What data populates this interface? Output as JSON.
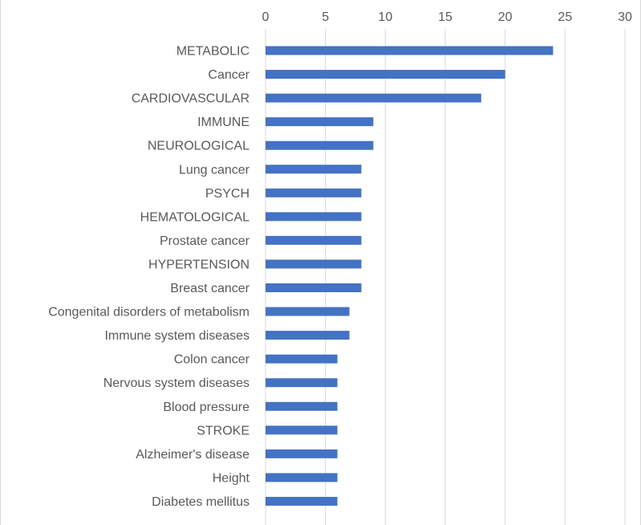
{
  "chart_data": {
    "type": "bar",
    "orientation": "horizontal",
    "categories": [
      "METABOLIC",
      "Cancer",
      "CARDIOVASCULAR",
      "IMMUNE",
      "NEUROLOGICAL",
      "Lung cancer",
      "PSYCH",
      "HEMATOLOGICAL",
      "Prostate cancer",
      "HYPERTENSION",
      "Breast cancer",
      "Congenital disorders of metabolism",
      "Immune system diseases",
      "Colon cancer",
      "Nervous system diseases",
      "Blood pressure",
      "STROKE",
      "Alzheimer's disease",
      "Height",
      "Diabetes mellitus"
    ],
    "values": [
      24,
      20,
      18,
      9,
      9,
      8,
      8,
      8,
      8,
      8,
      8,
      7,
      7,
      6,
      6,
      6,
      6,
      6,
      6,
      6
    ],
    "title": "",
    "xlabel": "",
    "ylabel": "",
    "xlim": [
      0,
      30
    ],
    "xticks": [
      0,
      5,
      10,
      15,
      20,
      25,
      30
    ],
    "x_axis_position": "top",
    "grid": true,
    "legend": "none",
    "bar_color": "#4472c4",
    "gridline_color": "#d9d9d9",
    "label_color": "#595959"
  }
}
